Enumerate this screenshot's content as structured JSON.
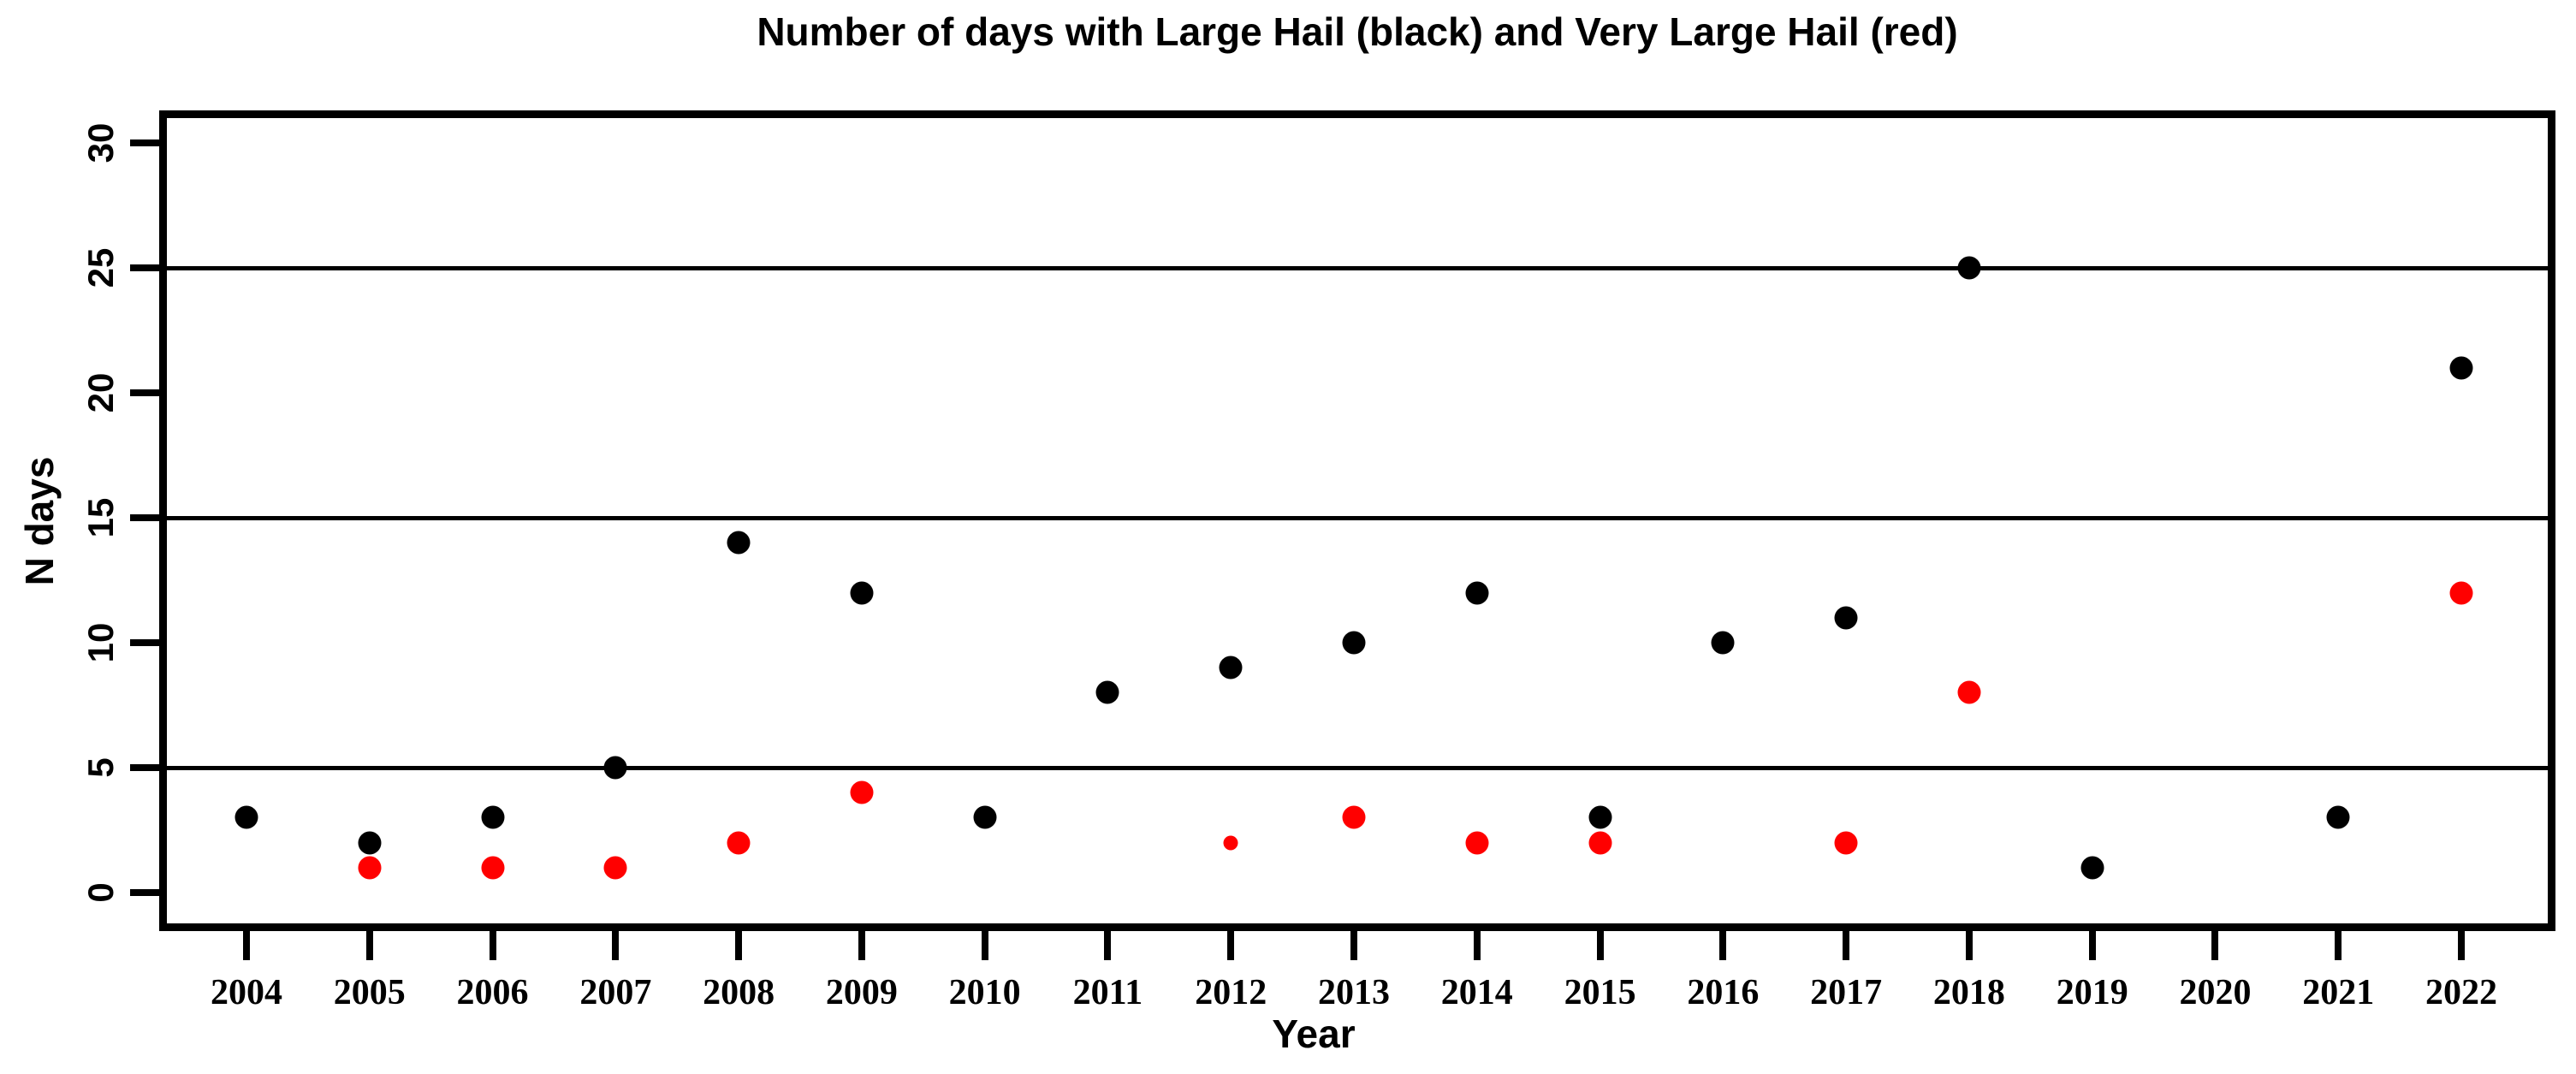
{
  "page": {
    "background": "#FFFFFF"
  },
  "chart_data": {
    "type": "scatter",
    "title": "Number of days with Large Hail (black) and Very Large Hail (red)",
    "xlabel": "Year",
    "ylabel": "N days",
    "x_years": [
      2004,
      2005,
      2006,
      2007,
      2008,
      2009,
      2010,
      2011,
      2012,
      2013,
      2014,
      2015,
      2016,
      2017,
      2018,
      2019,
      2020,
      2021,
      2022
    ],
    "series": [
      {
        "name": "Large Hail",
        "color": "#000000",
        "values": [
          3,
          2,
          3,
          5,
          14,
          12,
          3,
          8,
          9,
          10,
          12,
          3,
          10,
          11,
          25,
          1,
          null,
          3,
          21
        ]
      },
      {
        "name": "Very Large Hail",
        "color": "#FF0000",
        "values": [
          null,
          1,
          1,
          1,
          2,
          4,
          null,
          null,
          2,
          3,
          2,
          2,
          null,
          2,
          8,
          null,
          null,
          null,
          12
        ],
        "small_points": [
          2012
        ]
      }
    ],
    "yticks": [
      0,
      5,
      10,
      15,
      20,
      25,
      30
    ],
    "ylim": [
      0,
      31
    ],
    "gridlines_y": [
      5,
      15,
      25
    ],
    "grid": "horizontal black lines at y = 5, 15, 25",
    "legend_position": "none (series colors named in title)"
  }
}
